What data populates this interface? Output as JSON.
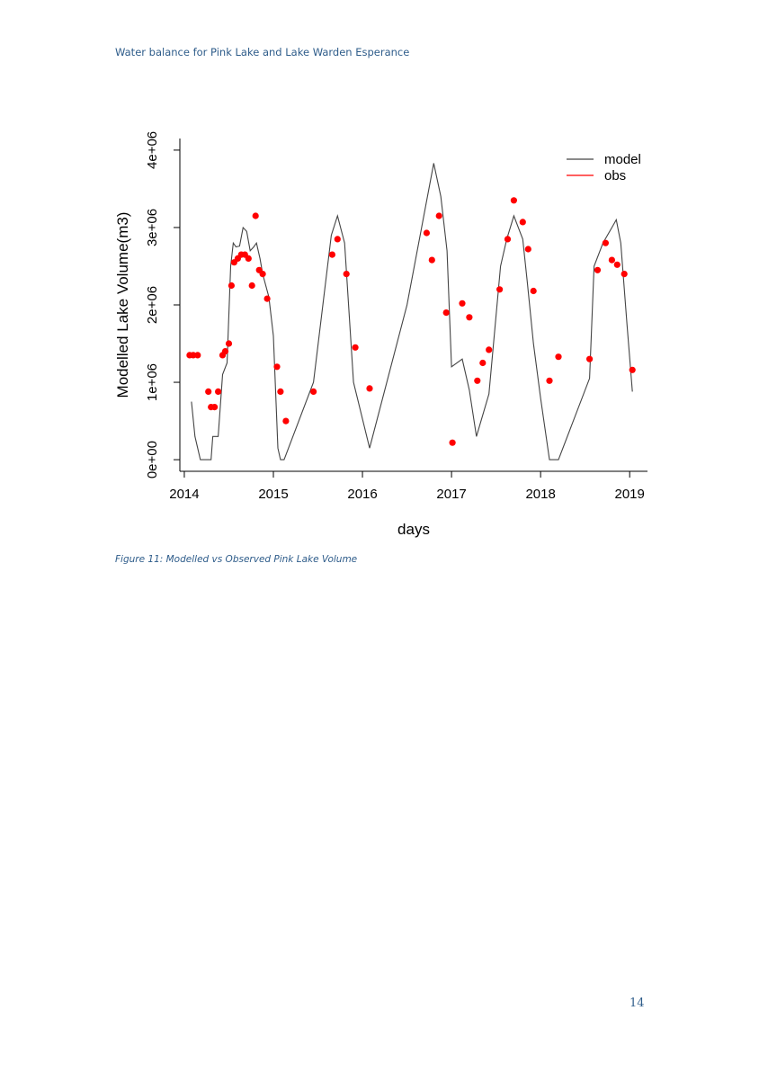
{
  "header": {
    "running_title": "Water balance for Pink Lake and Lake Warden Esperance"
  },
  "figure": {
    "caption": "Figure 11: Modelled vs Observed Pink Lake Volume"
  },
  "footer": {
    "page_number": "14"
  },
  "chart_data": {
    "type": "line",
    "title": "",
    "xlabel": "days",
    "ylabel": "Modelled Lake Volume(m3)",
    "xlim": [
      2013.95,
      2019.2
    ],
    "ylim": [
      -150000,
      4150000
    ],
    "x_ticks": [
      2014,
      2015,
      2016,
      2017,
      2018,
      2019
    ],
    "x_tick_labels": [
      "2014",
      "2015",
      "2016",
      "2017",
      "2018",
      "2019"
    ],
    "y_ticks": [
      0,
      1000000,
      2000000,
      3000000,
      4000000
    ],
    "y_tick_labels": [
      "0e+00",
      "1e+06",
      "2e+06",
      "3e+06",
      "4e+06"
    ],
    "grid": false,
    "legend_position": "top-right",
    "series": [
      {
        "name": "model",
        "color": "#444444",
        "style": "line",
        "x": [
          2014.08,
          2014.12,
          2014.18,
          2014.3,
          2014.32,
          2014.36,
          2014.38,
          2014.43,
          2014.48,
          2014.52,
          2014.55,
          2014.58,
          2014.62,
          2014.66,
          2014.7,
          2014.74,
          2014.78,
          2014.81,
          2014.85,
          2014.88,
          2014.95,
          2015.0,
          2015.05,
          2015.08,
          2015.12,
          2015.45,
          2015.65,
          2015.72,
          2015.8,
          2015.9,
          2016.08,
          2016.5,
          2016.8,
          2016.88,
          2016.95,
          2017.0,
          2017.12,
          2017.2,
          2017.28,
          2017.42,
          2017.55,
          2017.62,
          2017.7,
          2017.8,
          2017.85,
          2017.92,
          2018.0,
          2018.1,
          2018.2,
          2018.55,
          2018.6,
          2018.7,
          2018.8,
          2018.85,
          2018.9,
          2018.97,
          2019.03
        ],
        "y": [
          750000,
          300000,
          0,
          0,
          300000,
          300000,
          300000,
          1100000,
          1250000,
          2500000,
          2800000,
          2750000,
          2760000,
          3000000,
          2950000,
          2700000,
          2750000,
          2800000,
          2600000,
          2400000,
          2100000,
          1600000,
          150000,
          0,
          0,
          1000000,
          2900000,
          3150000,
          2800000,
          1000000,
          150000,
          2000000,
          3830000,
          3400000,
          2700000,
          1200000,
          1300000,
          900000,
          300000,
          850000,
          2500000,
          2850000,
          3150000,
          2850000,
          2300000,
          1500000,
          800000,
          0,
          0,
          1050000,
          2500000,
          2800000,
          3000000,
          3100000,
          2800000,
          1750000,
          880000
        ]
      },
      {
        "name": "obs",
        "color": "#ff0000",
        "style": "points",
        "x": [
          2014.06,
          2014.1,
          2014.15,
          2014.27,
          2014.3,
          2014.34,
          2014.38,
          2014.43,
          2014.46,
          2014.5,
          2014.53,
          2014.56,
          2014.6,
          2014.64,
          2014.68,
          2014.72,
          2014.76,
          2014.8,
          2014.84,
          2014.88,
          2014.93,
          2015.04,
          2015.08,
          2015.14,
          2015.45,
          2015.66,
          2015.72,
          2015.82,
          2015.92,
          2016.08,
          2016.72,
          2016.78,
          2016.86,
          2016.94,
          2017.01,
          2017.12,
          2017.2,
          2017.29,
          2017.35,
          2017.42,
          2017.54,
          2017.63,
          2017.7,
          2017.8,
          2017.86,
          2017.92,
          2018.1,
          2018.2,
          2018.55,
          2018.64,
          2018.73,
          2018.8,
          2018.86,
          2018.94,
          2019.03
        ],
        "y": [
          1350000,
          1350000,
          1350000,
          880000,
          680000,
          680000,
          880000,
          1350000,
          1400000,
          1500000,
          2250000,
          2550000,
          2600000,
          2650000,
          2650000,
          2600000,
          2250000,
          3150000,
          2450000,
          2400000,
          2080000,
          1200000,
          880000,
          500000,
          880000,
          2650000,
          2850000,
          2400000,
          1450000,
          920000,
          2930000,
          2580000,
          3150000,
          1900000,
          220000,
          2020000,
          1840000,
          1020000,
          1250000,
          1420000,
          2200000,
          2850000,
          3350000,
          3070000,
          2720000,
          2180000,
          1020000,
          1330000,
          1300000,
          2450000,
          2800000,
          2580000,
          2520000,
          2400000,
          1160000
        ]
      }
    ]
  }
}
